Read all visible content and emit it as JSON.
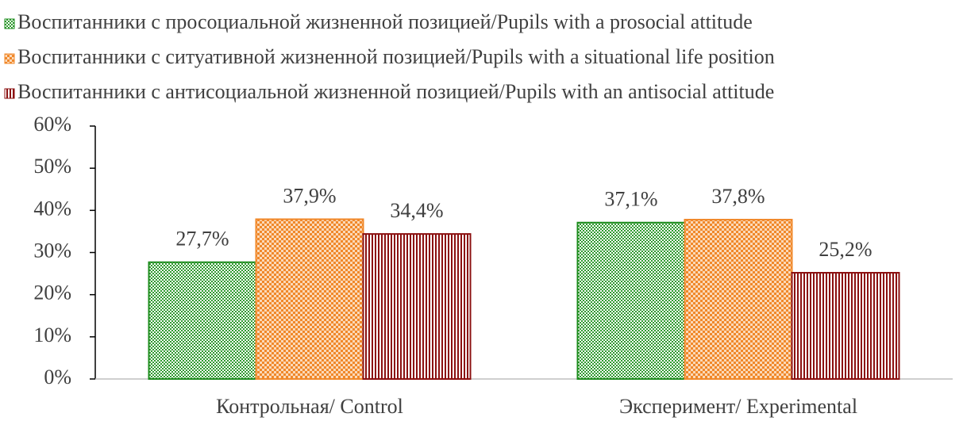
{
  "chart_data": {
    "type": "bar",
    "categories": [
      "Контрольная/ Control",
      "Эксперимент/ Experimental"
    ],
    "series": [
      {
        "name": "Воспитанники с просоциальной жизненной позицией/Pupils with a prosocial attitude",
        "color": "#1e8c1e",
        "values": [
          27.7,
          37.1
        ],
        "value_labels": [
          "27,7%",
          "37,1%"
        ]
      },
      {
        "name": "Воспитанники с ситуативной жизненной позицией/Pupils with a situational life position",
        "color": "#f0882a",
        "values": [
          37.9,
          37.8
        ],
        "value_labels": [
          "37,9%",
          "37,8%"
        ]
      },
      {
        "name": "Воспитанники с антисоциальной жизненной позицией/Pupils with an antisocial attitude",
        "color": "#8b1010",
        "values": [
          34.4,
          25.2
        ],
        "value_labels": [
          "34,4%",
          "25,2%"
        ]
      }
    ],
    "ylim": [
      0,
      60
    ],
    "yticks": [
      {
        "value": 0,
        "label": "0%"
      },
      {
        "value": 10,
        "label": "10%"
      },
      {
        "value": 20,
        "label": "20%"
      },
      {
        "value": 30,
        "label": "30%"
      },
      {
        "value": 40,
        "label": "40%"
      },
      {
        "value": 50,
        "label": "50%"
      },
      {
        "value": 60,
        "label": "60%"
      }
    ],
    "legend": "top"
  }
}
